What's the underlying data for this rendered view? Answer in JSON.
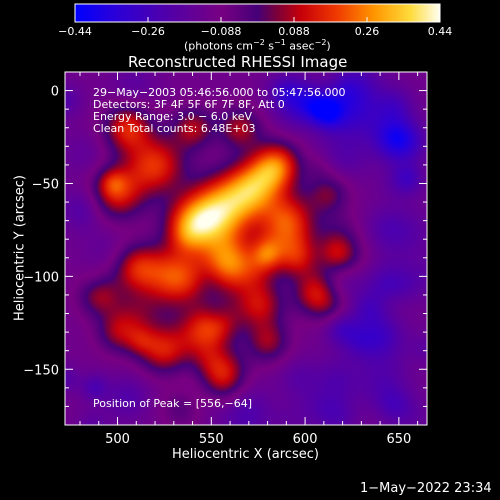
{
  "chart_data": {
    "type": "heatmap",
    "title": "Reconstructed RHESSI Image",
    "xlabel": "Heliocentric X (arcsec)",
    "ylabel": "Heliocentric Y (arcsec)",
    "xlim": [
      472,
      665
    ],
    "ylim": [
      -180,
      10
    ],
    "xticks": [
      "500",
      "550",
      "600",
      "650"
    ],
    "xtick_values": [
      500,
      550,
      600,
      650
    ],
    "yticks": [
      "0",
      "−50",
      "−100",
      "−150"
    ],
    "ytick_values": [
      0,
      -50,
      -100,
      -150
    ],
    "colorbar": {
      "ticks": [
        "−0.44",
        "−0.26",
        "−0.088",
        "0.088",
        "0.26",
        "0.44"
      ],
      "range": [
        -0.44,
        0.44
      ],
      "label_parts": [
        "(photons cm",
        "−2",
        " s",
        "−1",
        " asec",
        "−2",
        ")"
      ]
    },
    "annotations": [
      "29−May−2003 05:46:56.000 to 05:47:56.000",
      "Detectors: 3F 4F 5F 6F 7F 8F, Att 0",
      "Energy Range: 3.0 − 6.0 keV",
      "Clean    Total counts: 6.48E+03"
    ],
    "peak_label": "Position of Peak = [556,−64]",
    "peak": [
      556,
      -64
    ]
  },
  "timestamp": "1−May−2022 23:34"
}
